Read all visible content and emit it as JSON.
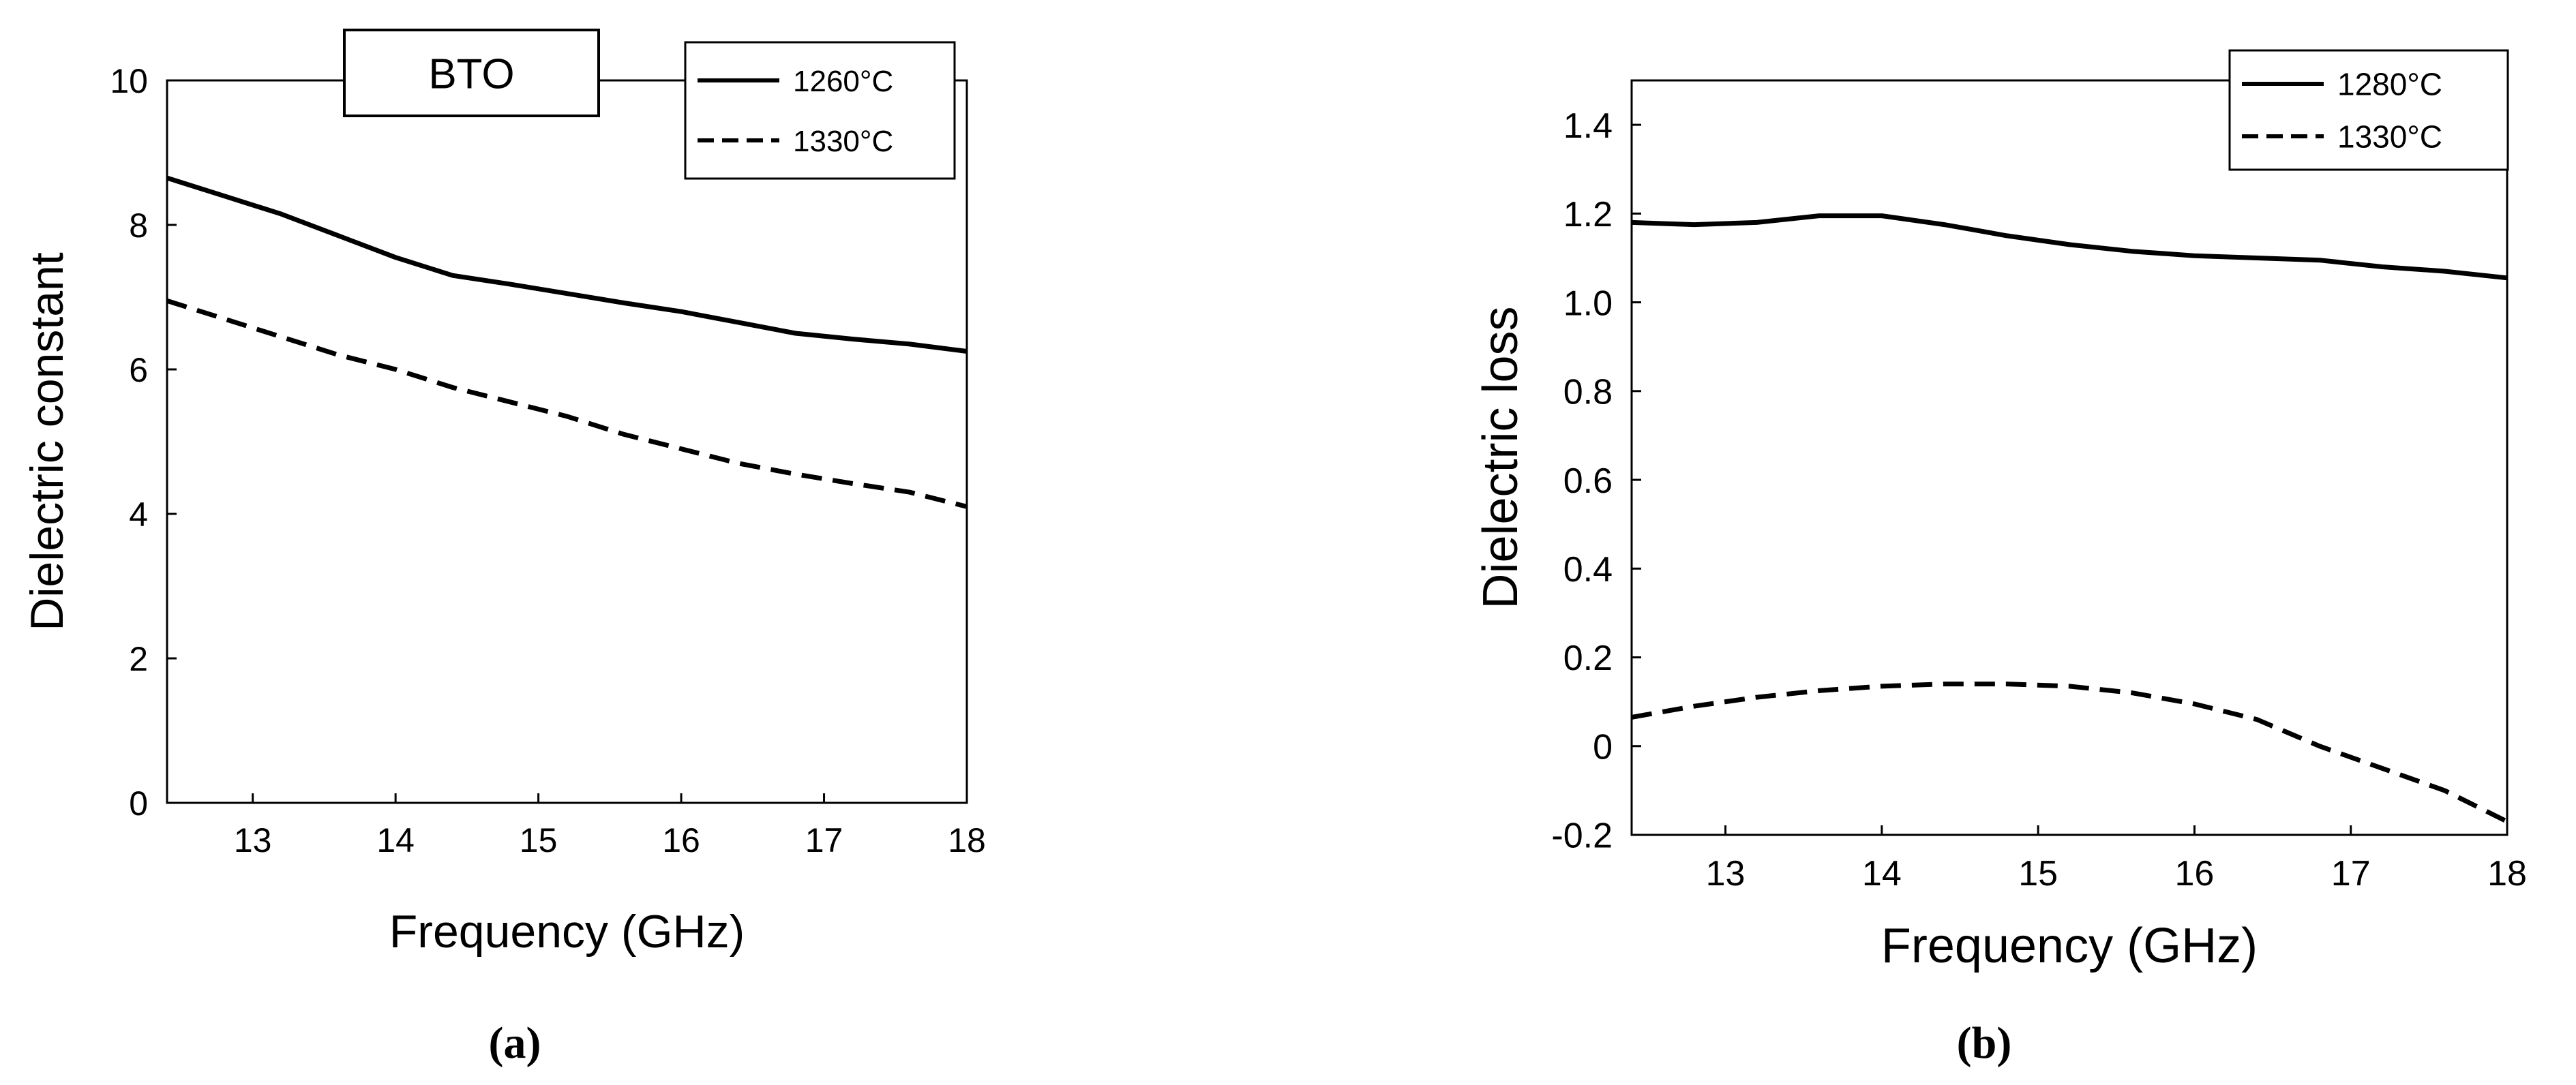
{
  "chart_data": [
    {
      "type": "line",
      "panel_label": "(a)",
      "title": "",
      "inset_label": "BTO",
      "xlabel": "Frequency (GHz)",
      "ylabel": "Dielectric constant",
      "xlim": [
        12.4,
        18
      ],
      "ylim": [
        0,
        10
      ],
      "xticks": [
        "13",
        "14",
        "15",
        "16",
        "17",
        "18"
      ],
      "yticks": [
        "0",
        "2",
        "4",
        "6",
        "8",
        "10"
      ],
      "xtick_values": [
        13,
        14,
        15,
        16,
        17,
        18
      ],
      "ytick_values": [
        0,
        2,
        4,
        6,
        8,
        10
      ],
      "grid": false,
      "legend_position": "top-right",
      "series": [
        {
          "name": "1260°C",
          "style": "solid",
          "x": [
            12.4,
            12.8,
            13.2,
            13.6,
            14.0,
            14.4,
            14.8,
            15.2,
            15.6,
            16.0,
            16.4,
            16.8,
            17.2,
            17.6,
            18.0
          ],
          "y": [
            8.65,
            8.4,
            8.15,
            7.85,
            7.55,
            7.3,
            7.18,
            7.05,
            6.92,
            6.8,
            6.65,
            6.5,
            6.42,
            6.35,
            6.25
          ]
        },
        {
          "name": "1330°C",
          "style": "dashed",
          "x": [
            12.4,
            12.8,
            13.2,
            13.6,
            14.0,
            14.4,
            14.8,
            15.2,
            15.6,
            16.0,
            16.4,
            16.8,
            17.2,
            17.6,
            18.0
          ],
          "y": [
            6.95,
            6.7,
            6.45,
            6.2,
            6.0,
            5.75,
            5.55,
            5.35,
            5.1,
            4.9,
            4.7,
            4.55,
            4.42,
            4.3,
            4.1
          ]
        }
      ]
    },
    {
      "type": "line",
      "panel_label": "(b)",
      "title": "",
      "xlabel": "Frequency (GHz)",
      "ylabel": "Dielectric loss",
      "xlim": [
        12.4,
        18
      ],
      "ylim": [
        -0.2,
        1.5
      ],
      "xticks": [
        "13",
        "14",
        "15",
        "16",
        "17",
        "18"
      ],
      "yticks": [
        "-0.2",
        "0",
        "0.2",
        "0.4",
        "0.6",
        "0.8",
        "1.0",
        "1.2",
        "1.4"
      ],
      "xtick_values": [
        13,
        14,
        15,
        16,
        17,
        18
      ],
      "ytick_values": [
        -0.2,
        0,
        0.2,
        0.4,
        0.6,
        0.8,
        1.0,
        1.2,
        1.4
      ],
      "grid": false,
      "legend_position": "top-right",
      "series": [
        {
          "name": "1280°C",
          "style": "solid",
          "x": [
            12.4,
            12.8,
            13.2,
            13.6,
            14.0,
            14.4,
            14.8,
            15.2,
            15.6,
            16.0,
            16.4,
            16.8,
            17.2,
            17.6,
            18.0
          ],
          "y": [
            1.18,
            1.175,
            1.18,
            1.195,
            1.195,
            1.175,
            1.15,
            1.13,
            1.115,
            1.105,
            1.1,
            1.095,
            1.08,
            1.07,
            1.055
          ]
        },
        {
          "name": "1330°C",
          "style": "dashed",
          "x": [
            12.4,
            12.8,
            13.2,
            13.6,
            14.0,
            14.4,
            14.8,
            15.2,
            15.6,
            16.0,
            16.4,
            16.8,
            17.2,
            17.6,
            18.0
          ],
          "y": [
            0.065,
            0.09,
            0.11,
            0.125,
            0.135,
            0.14,
            0.14,
            0.135,
            0.12,
            0.095,
            0.06,
            0.0,
            -0.05,
            -0.1,
            -0.17
          ]
        }
      ]
    }
  ]
}
